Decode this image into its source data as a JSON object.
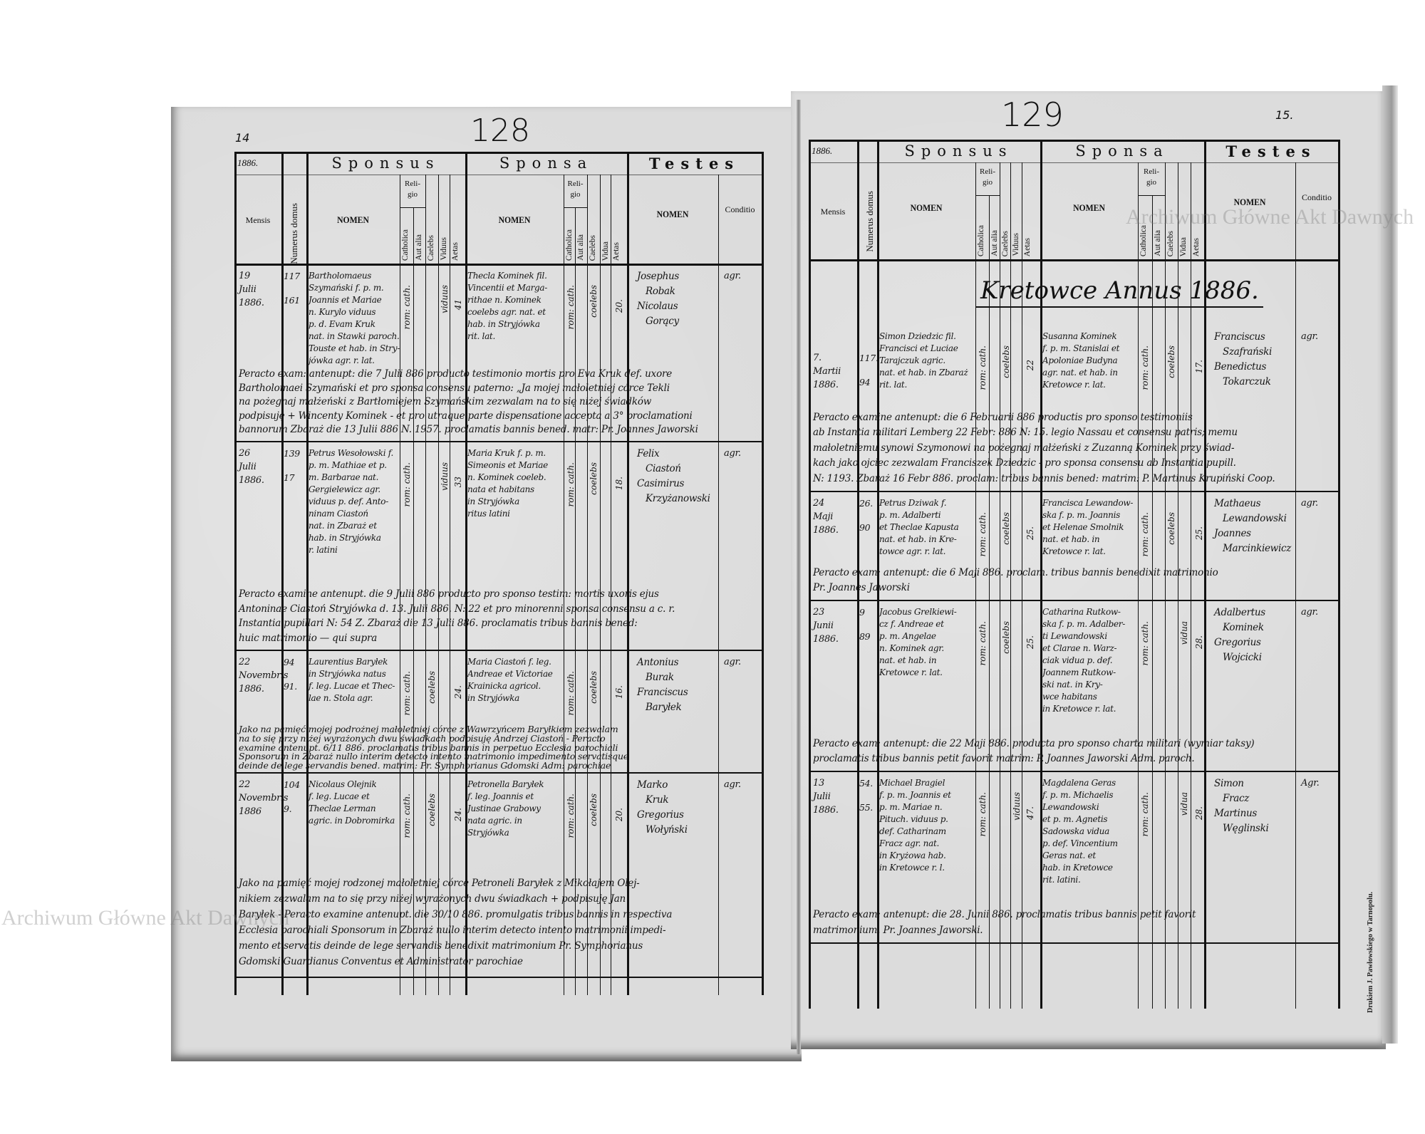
{
  "left_page": {
    "page_number": "14",
    "stamp_number": "128",
    "header": {
      "year": "1886.",
      "sponsus": "Sponsus",
      "sponsa": "Sponsa",
      "testes": "Testes",
      "mensis": "Mensis",
      "numerus_domus": "Numerus domus",
      "nomen": "NOMEN",
      "religio": "Reli-gio",
      "catholica": "Catholica",
      "aut_alia": "Aut alia",
      "caelebs": "Caelebs",
      "viduus": "Viduus",
      "vidua": "Vidua",
      "aetas": "Aetas",
      "conditio": "Conditio"
    },
    "entries": [
      {
        "date": [
          "19",
          "Julii",
          "1886."
        ],
        "house": [
          "117",
          "161"
        ],
        "groom": [
          "Bartholomaeus",
          "Szymański f. p. m.",
          "Joannis et Mariae",
          "n. Kurylo viduus",
          "p. d. Evam Kruk",
          "nat. in Stawki paroch.",
          "Touste et hab. in Stry-",
          "jówka agr. r. lat."
        ],
        "groom_religion": "rom: cath.",
        "groom_status": "viduus",
        "groom_age": "41",
        "bride": [
          "Thecla Kominek fil.",
          "Vincentii et Marga-",
          "rithae n. Kominek",
          "coelebs agr. nat. et",
          "hab. in Stryjówka",
          "rit. lat."
        ],
        "bride_religion": "rom: cath.",
        "bride_status": "coelebs",
        "bride_age": "20.",
        "witnesses": [
          "Josephus",
          "Robak",
          "Nicolaus",
          "Gorący"
        ],
        "condition": "agr.",
        "annotation": [
          "Peracto exam: antenupt: die 7 Julii 886 producto testimonio mortis pro Eva Kruk def. uxore",
          "Bartholomaei Szymański et pro sponsa consensu paterno: „Ja mojej małoletniej córce Tekli",
          "na pożegnaj małżeński z Bartłomiejem Szymańskim zezwalam na to się niżej świadków",
          "podpisuję + Wincenty Kominek - et pro utraque parte dispensatione accepta a 3° proclamationi",
          "bannorum Zbaraż die 13 Julii 886 N. 1957. proclamatis bannis bened. matr: Pr. Joannes Jaworski"
        ]
      },
      {
        "date": [
          "26",
          "Julii",
          "1886."
        ],
        "house": [
          "139",
          "17"
        ],
        "groom": [
          "Petrus Wesołowski f.",
          "p. m. Mathiae et p.",
          "m. Barbarae nat.",
          "Gergielewicz agr.",
          "viduus p. def. Anto-",
          "ninam Ciastoń",
          "nat. in Zbaraż et",
          "hab. in Stryjówka",
          "r. latini"
        ],
        "groom_religion": "rom: cath.",
        "groom_status": "viduus",
        "groom_age": "33",
        "bride": [
          "Maria Kruk f. p. m.",
          "Simeonis et Mariae",
          "n. Kominek coeleb.",
          "nata et habitans",
          "in Stryjówka",
          "ritus latini"
        ],
        "bride_religion": "rom: cath.",
        "bride_status": "coelebs",
        "bride_age": "18.",
        "witnesses": [
          "Felix",
          "Ciastoń",
          "Casimirus",
          "Krzyżanowski"
        ],
        "condition": "agr.",
        "annotation": [
          "Peracto examine antenupt. die 9 Julii 886 producto pro sponso testim: mortis uxoris ejus",
          "Antoninae Ciastoń Stryjówka d. 13. Julii 886. N: 22 et pro minorenni sponsa consensu a c. r.",
          "Instantia pupillari N: 54 Z. Zbaraż die 13 Julii 886. proclamatis tribus bannis bened:",
          "huic matrimonio —   qui supra"
        ]
      },
      {
        "date": [
          "22",
          "Novembris",
          "1886."
        ],
        "house": [
          "94",
          "91."
        ],
        "groom": [
          "Laurentius Baryłek",
          "in Stryjówka natus",
          "f. leg. Lucae et Thec-",
          "lae n. Stola agr."
        ],
        "groom_religion": "rom: cath.",
        "groom_status": "coelebs",
        "groom_age": "24.",
        "bride": [
          "Maria Ciastoń f. leg.",
          "Andreae et Victoriae",
          "Krainicka agricol.",
          "in Stryjówka"
        ],
        "bride_religion": "rom: cath.",
        "bride_status": "coelebs",
        "bride_age": "16.",
        "witnesses": [
          "Antonius",
          "Burak",
          "Franciscus",
          "Baryłek"
        ],
        "condition": "agr.",
        "annotation": [
          "Jako na pamięć mojej podrożnej małoletniej córce z Wawrzyńcem Baryłkiem zezwalam",
          "na to się przy niżej wyrażonych dwu świadkach podpisuję Andrzej Ciastoń - Peracto",
          "examine antenupt. 6/11 886. proclamatis tribus bannis in perpetuo Ecclesia parochiali",
          "Sponsorum in Zbaraż nullo interim detecto intento matrimonio impedimento servatisque",
          "deinde de lege servandis bened. matrim: Pr. Symphorianus Gdomski Adm: parochiae"
        ]
      },
      {
        "date": [
          "22",
          "Novembris",
          "1886"
        ],
        "house": [
          "104",
          "9."
        ],
        "groom": [
          "Nicolaus Olejnik",
          "f. leg. Lucae et",
          "Theclae Lerman",
          "agric. in Dobromirka"
        ],
        "groom_religion": "rom: cath.",
        "groom_status": "coelebs",
        "groom_age": "24.",
        "bride": [
          "Petronella Baryłek",
          "f. leg. Joannis et",
          "Justinae Grabowy",
          "nata agric. in",
          "Stryjówka"
        ],
        "bride_religion": "rom: cath.",
        "bride_status": "coelebs",
        "bride_age": "20.",
        "witnesses": [
          "Marko",
          "Kruk",
          "Gregorius",
          "Wołyński"
        ],
        "condition": "agr.",
        "annotation": [
          "Jako na pamięć mojej rodzonej małoletniej córce Petroneli Baryłek z Mikołajem Olej-",
          "nikiem zezwalam na to się przy niżej wyrażonych dwu świadkach + podpisuję Jan",
          "Baryłek - Peracto examine antenupt. die 30/10 886. promulgatis tribus bannis in respectiva",
          "Ecclesia parochiali Sponsorum in Zbaraż nullo interim detecto intento matrimonii impedi-",
          "mento et servatis deinde de lege servandis benedixit matrimonium Pr. Symphorianus",
          "Gdomski Guardianus Conventus et Administrator parochiae"
        ]
      }
    ]
  },
  "right_page": {
    "page_number": "15.",
    "stamp_number": "129",
    "section_title": "Kretowce Annus 1886.",
    "header": {
      "year": "1886.",
      "sponsus": "Sponsus",
      "sponsa": "Sponsa",
      "testes": "Testes",
      "mensis": "Mensis",
      "numerus_domus": "Numerus domus",
      "nomen": "NOMEN",
      "religio": "Reli-gio",
      "catholica": "Catholica",
      "aut_alia": "Aut alia",
      "caelebs": "Caelebs",
      "viduus": "Viduus",
      "vidua": "Vidua",
      "aetas": "Aetas",
      "conditio": "Conditio"
    },
    "entries": [
      {
        "date": [
          "7.",
          "Martii",
          "1886."
        ],
        "house": [
          "117.",
          "94"
        ],
        "groom": [
          "Simon Dziedzic fil.",
          "Francisci et Luciae",
          "Tarajczuk agric.",
          "nat. et hab. in Zbaraż",
          "rit. lat."
        ],
        "groom_religion": "rom: cath.",
        "groom_status": "coelebs",
        "groom_age": "22",
        "bride": [
          "Susanna Kominek",
          "f. p. m. Stanislai et",
          "Apoloniae Budyna",
          "agr. nat. et hab. in",
          "Kretowce r. lat."
        ],
        "bride_religion": "rom: cath.",
        "bride_status": "coelebs",
        "bride_age": "17.",
        "witnesses": [
          "Franciscus",
          "Szafrański",
          "Benedictus",
          "Tokarczuk"
        ],
        "condition": "agr.",
        "annotation": [
          "Peracto examine antenupt: die 6 Februarii 886 productis pro sponso testimoniis",
          "ab Instantia militari Lemberg 22 Febr: 886 N: 15. legio Nassau et consensu patris; memu",
          "małoletniemu synowi Szymonowi na pożegnaj małżeński z Zuzanną Kominek przy świad-",
          "kach jako ojciec zezwalam Franciszek Dziedzic - pro sponsa consensu ab Instantia pupill.",
          "N: 1193. Zbaraż 16 Febr 886. proclam: tribus bannis bened: matrim: P. Martinus Krupiński Coop."
        ]
      },
      {
        "date": [
          "24",
          "Maji",
          "1886."
        ],
        "house": [
          "26.",
          "90"
        ],
        "groom": [
          "Petrus Dziwak f.",
          "p. m. Adalberti",
          "et Theclae Kapusta",
          "nat. et hab. in Kre-",
          "towce agr. r. lat."
        ],
        "groom_religion": "rom: cath.",
        "groom_status": "coelebs",
        "groom_age": "25.",
        "bride": [
          "Francisca Lewandow-",
          "ska f. p. m. Joannis",
          "et Helenae Smolnik",
          "nat. et hab. in",
          "Kretowce r. lat."
        ],
        "bride_religion": "rom: cath.",
        "bride_status": "coelebs",
        "bride_age": "25.",
        "witnesses": [
          "Mathaeus",
          "Lewandowski",
          "Joannes",
          "Marcinkiewicz"
        ],
        "condition": "agr.",
        "annotation": [
          "Peracto exam: antenupt: die 6 Maji 886. proclam. tribus bannis benedixit matrimonio",
          "Pr. Joannes Jaworski"
        ]
      },
      {
        "date": [
          "23",
          "Junii",
          "1886."
        ],
        "house": [
          "9",
          "89"
        ],
        "groom": [
          "Jacobus Grelkiewi-",
          "cz f. Andreae et",
          "p. m. Angelae",
          "n. Kominek agr.",
          "nat. et hab. in",
          "Kretowce r. lat."
        ],
        "groom_religion": "rom: cath.",
        "groom_status": "coelebs",
        "groom_age": "25.",
        "bride": [
          "Catharina Rutkow-",
          "ska f. p. m. Adalber-",
          "ti Lewandowski",
          "et Clarae n. Warz-",
          "ciak vidua p. def.",
          "Joannem Rutkow-",
          "ski nat. in Kry-",
          "wce habitans",
          "in Kretowce r. lat."
        ],
        "bride_religion": "rom: cath.",
        "bride_status": "vidua",
        "bride_age": "28.",
        "witnesses": [
          "Adalbertus",
          "Kominek",
          "Gregorius",
          "Wojcicki"
        ],
        "condition": "agr.",
        "annotation": [
          "Peracto exam: antenupt: die 22 Maji 886. producta pro sponso charta militari (wymiar taksy)",
          "proclamatis tribus bannis petit favorit matrim: P. Joannes Jaworski Adm. paroch."
        ]
      },
      {
        "date": [
          "13",
          "Julii",
          "1886."
        ],
        "house": [
          "54.",
          "55."
        ],
        "groom": [
          "Michael Bragiel",
          "f. p. m. Joannis et",
          "p. m. Mariae n.",
          "Pituch. viduus p.",
          "def. Catharinam",
          "Fracz agr. nat.",
          "in Kryżowa hab.",
          "in Kretowce r. l."
        ],
        "groom_religion": "rom: cath.",
        "groom_status": "viduus",
        "groom_age": "47.",
        "bride": [
          "Magdalena Geras",
          "f. p. m. Michaelis",
          "Lewandowski",
          "et p. m. Agnetis",
          "Sadowska vidua",
          "p. def. Vincentium",
          "Geras nat. et",
          "hab. in Kretowce",
          "rit. latini."
        ],
        "bride_religion": "rom: cath.",
        "bride_status": "vidua",
        "bride_age": "28.",
        "witnesses": [
          "Simon",
          "Fracz",
          "Martinus",
          "Węglinski"
        ],
        "condition": "Agr.",
        "annotation": [
          "Peracto exam: antenupt: die 28. Junii 886. proclamatis tribus bannis petit favorit",
          "matrimonium. Pr. Joannes Jaworski."
        ]
      }
    ],
    "printer_imprint": "Drukiem J. Pawłowskiego w Tarnopolu."
  },
  "watermarks": [
    "Archiwum Główne Akt Dawnych",
    "Archiwum Główne Akt Dawnych"
  ],
  "colors": {
    "paper": "#dcdcdc",
    "ink": "#151515",
    "background": "#ffffff"
  }
}
